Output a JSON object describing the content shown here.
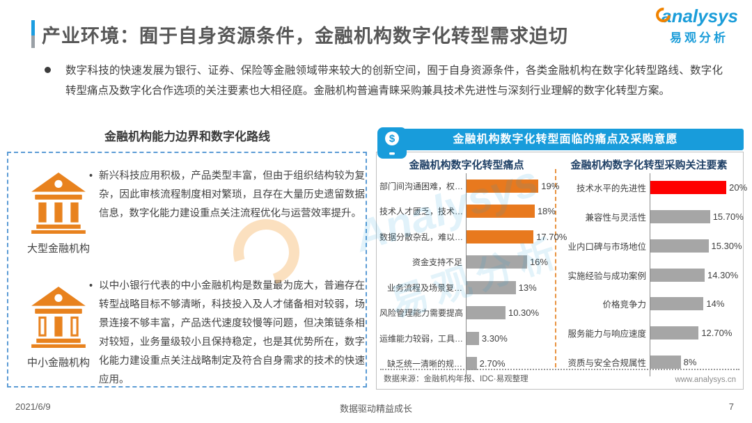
{
  "page": {
    "title": "产业环境：囿于自身资源条件，金融机构数字化转型需求迫切",
    "summary": "数字科技的快速发展为银行、证券、保险等金融领域带来较大的创新空间，囿于自身资源条件，各类金融机构在数字化转型路线、数字化转型痛点及数字化合作选项的关注要素也大相径庭。金融机构普遍青睐采购兼具技术先进性与深刻行业理解的数字化转型方案。",
    "footer": {
      "date": "2021/6/9",
      "slogan": "数据驱动精益成长",
      "page_number": "7"
    }
  },
  "logo": {
    "brand": "analysys",
    "brand_cn": "易观分析"
  },
  "watermark": {
    "text_en": "Analysys",
    "text_cn": "易观分析"
  },
  "left_panel": {
    "title": "金融机构能力边界和数字化路线",
    "items": [
      {
        "label": "大型金融机构",
        "icon": "bank-icon",
        "text": "新兴科技应用积极，产品类型丰富，但由于组织结构较为复杂，因此审核流程制度相对繁琐，且存在大量历史遗留数据信息，数字化能力建设重点关注流程优化与运营效率提升。"
      },
      {
        "label": "中小金融机构",
        "icon": "bank-icon",
        "text": "以中小银行代表的中小金融机构是数量最为庞大，普遍存在转型战略目标不够清晰，科技投入及人才储备相对较弱，场景连接不够丰富，产品迭代速度较慢等问题，但决策链条相对较短，业务量级较小且保持稳定，也是其优势所在，数字化能力建设重点关注战略制定及符合自身需求的技术的快速应用。"
      }
    ]
  },
  "right_panel": {
    "banner": "金融机构数字化转型面临的痛点及采购意愿",
    "banner_icon": "mobile-payment-icon",
    "source": "数据来源：金融机构年报、IDC·易观整理",
    "website": "www.analysys.cn"
  },
  "chart_data": [
    {
      "type": "bar",
      "orientation": "horizontal",
      "title": "金融机构数字化转型痛点",
      "categories": [
        "部门间沟通困难，权…",
        "技术人才匮乏，技术…",
        "数据分散杂乱，难以…",
        "资金支持不足",
        "业务流程及场景复…",
        "风险管理能力需要提高",
        "运维能力较弱，工具…",
        "缺乏统一清晰的规…"
      ],
      "values": [
        19,
        18,
        17.7,
        16,
        13,
        10.3,
        3.3,
        2.7
      ],
      "value_labels": [
        "19%",
        "18%",
        "17.70%",
        "16%",
        "13%",
        "10.30%",
        "3.30%",
        "2.70%"
      ],
      "bar_colors": [
        "#e8791e",
        "#e8791e",
        "#e8791e",
        "#a6a6a6",
        "#a6a6a6",
        "#a6a6a6",
        "#a6a6a6",
        "#a6a6a6"
      ],
      "xlim": [
        0,
        23
      ],
      "grid": false,
      "legend": false
    },
    {
      "type": "bar",
      "orientation": "horizontal",
      "title": "金融机构数字化转型采购关注要素",
      "categories": [
        "技术水平的先进性",
        "兼容性与灵活性",
        "业内口碑与市场地位",
        "实施经验与成功案例",
        "价格竞争力",
        "服务能力与响应速度",
        "资质与安全合规属性"
      ],
      "values": [
        20,
        15.7,
        15.3,
        14.3,
        14,
        12.7,
        8
      ],
      "value_labels": [
        "20%",
        "15.70%",
        "15.30%",
        "14.30%",
        "14%",
        "12.70%",
        "8%"
      ],
      "bar_colors": [
        "#fe0000",
        "#a6a6a6",
        "#a6a6a6",
        "#a6a6a6",
        "#a6a6a6",
        "#a6a6a6",
        "#a6a6a6"
      ],
      "xlim": [
        0,
        24
      ],
      "grid": false,
      "legend": false
    }
  ],
  "colors": {
    "accent_blue": "#189cdb",
    "bar_orange": "#e8791e",
    "bar_gray": "#a6a6a6",
    "bar_red": "#fe0000",
    "icon_orange": "#e8821e",
    "chart_title_navy": "#1f4066",
    "dashed_border_blue": "#5b9bd5"
  }
}
